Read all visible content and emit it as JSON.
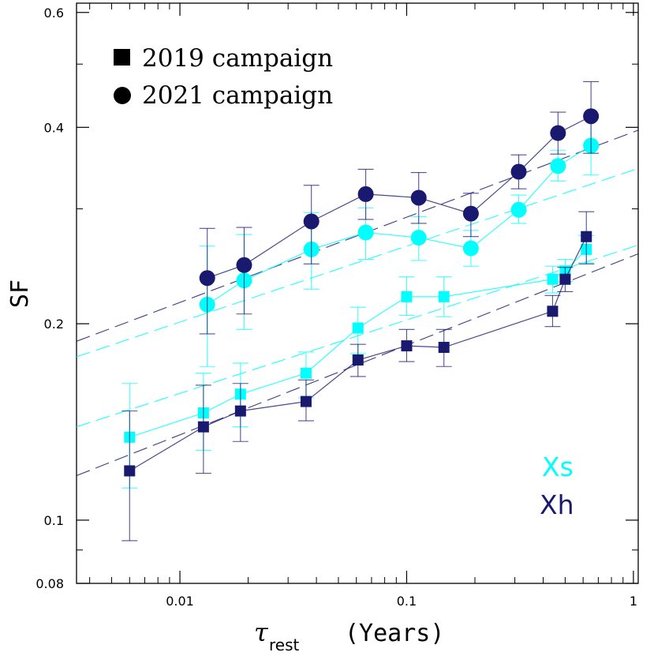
{
  "chart_data": {
    "type": "scatter",
    "title": "",
    "xlabel_symbol": "τ",
    "xlabel_sub": "rest",
    "xlabel_text": "(Years)",
    "ylabel": "SF",
    "xscale": "log",
    "yscale": "log",
    "xlim": [
      0.0035,
      1.05
    ],
    "ylim": [
      0.08,
      0.62
    ],
    "x_ticks": [
      {
        "value": 0.01,
        "label": "0.01"
      },
      {
        "value": 0.1,
        "label": "0.1"
      },
      {
        "value": 1,
        "label": "1"
      }
    ],
    "y_ticks": [
      {
        "value": 0.08,
        "label": "0.08"
      },
      {
        "value": 0.1,
        "label": "0.1"
      },
      {
        "value": 0.2,
        "label": "0.2"
      },
      {
        "value": 0.4,
        "label": "0.4"
      },
      {
        "value": 0.6,
        "label": "0.6"
      }
    ],
    "legend": [
      {
        "marker": "square",
        "label": "2019 campaign"
      },
      {
        "marker": "circle",
        "label": "2021 campaign"
      }
    ],
    "band_labels": [
      {
        "text": "Xs",
        "color": "#00ffff"
      },
      {
        "text": "Xh",
        "color": "#191970"
      }
    ],
    "series": [
      {
        "name": "2019 Xs",
        "marker": "square",
        "color": "#00ffff",
        "points": [
          {
            "x": 0.006,
            "y": 0.134,
            "lo": 0.112,
            "hi": 0.162
          },
          {
            "x": 0.0127,
            "y": 0.146,
            "lo": 0.128,
            "hi": 0.168
          },
          {
            "x": 0.0185,
            "y": 0.156,
            "lo": 0.139,
            "hi": 0.174
          },
          {
            "x": 0.036,
            "y": 0.168,
            "lo": 0.154,
            "hi": 0.181
          },
          {
            "x": 0.061,
            "y": 0.197,
            "lo": 0.18,
            "hi": 0.212
          },
          {
            "x": 0.1,
            "y": 0.22,
            "lo": 0.206,
            "hi": 0.236
          },
          {
            "x": 0.146,
            "y": 0.22,
            "lo": 0.205,
            "hi": 0.236
          },
          {
            "x": 0.44,
            "y": 0.234,
            "lo": 0.223,
            "hi": 0.245
          },
          {
            "x": 0.5,
            "y": 0.241,
            "lo": 0.232,
            "hi": 0.251
          },
          {
            "x": 0.62,
            "y": 0.26,
            "lo": 0.248,
            "hi": 0.273
          }
        ],
        "fit": {
          "y_at_0.0035": 0.139,
          "y_at_1.05": 0.264
        }
      },
      {
        "name": "2019 Xh",
        "marker": "square",
        "color": "#191970",
        "points": [
          {
            "x": 0.006,
            "y": 0.119,
            "lo": 0.093,
            "hi": 0.147
          },
          {
            "x": 0.0127,
            "y": 0.139,
            "lo": 0.118,
            "hi": 0.161
          },
          {
            "x": 0.0185,
            "y": 0.147,
            "lo": 0.132,
            "hi": 0.162
          },
          {
            "x": 0.036,
            "y": 0.152,
            "lo": 0.142,
            "hi": 0.164
          },
          {
            "x": 0.061,
            "y": 0.176,
            "lo": 0.166,
            "hi": 0.186
          },
          {
            "x": 0.1,
            "y": 0.185,
            "lo": 0.175,
            "hi": 0.196
          },
          {
            "x": 0.146,
            "y": 0.184,
            "lo": 0.172,
            "hi": 0.196
          },
          {
            "x": 0.44,
            "y": 0.209,
            "lo": 0.198,
            "hi": 0.221
          },
          {
            "x": 0.5,
            "y": 0.234,
            "lo": 0.224,
            "hi": 0.244
          },
          {
            "x": 0.62,
            "y": 0.272,
            "lo": 0.247,
            "hi": 0.297
          }
        ],
        "fit": {
          "y_at_0.0035": 0.117,
          "y_at_1.05": 0.256
        }
      },
      {
        "name": "2021 Xs",
        "marker": "circle",
        "color": "#00ffff",
        "points": [
          {
            "x": 0.0132,
            "y": 0.214,
            "lo": 0.172,
            "hi": 0.263
          },
          {
            "x": 0.0192,
            "y": 0.233,
            "lo": 0.196,
            "hi": 0.274
          },
          {
            "x": 0.038,
            "y": 0.26,
            "lo": 0.226,
            "hi": 0.296
          },
          {
            "x": 0.066,
            "y": 0.276,
            "lo": 0.251,
            "hi": 0.301
          },
          {
            "x": 0.113,
            "y": 0.271,
            "lo": 0.25,
            "hi": 0.292
          },
          {
            "x": 0.192,
            "y": 0.261,
            "lo": 0.245,
            "hi": 0.278
          },
          {
            "x": 0.312,
            "y": 0.299,
            "lo": 0.285,
            "hi": 0.315
          },
          {
            "x": 0.465,
            "y": 0.349,
            "lo": 0.331,
            "hi": 0.369
          },
          {
            "x": 0.65,
            "y": 0.375,
            "lo": 0.338,
            "hi": 0.413
          }
        ],
        "fit": {
          "y_at_0.0035": 0.178,
          "y_at_1.05": 0.346
        }
      },
      {
        "name": "2021 Xh",
        "marker": "circle",
        "color": "#191970",
        "points": [
          {
            "x": 0.0132,
            "y": 0.235,
            "lo": 0.193,
            "hi": 0.28
          },
          {
            "x": 0.0192,
            "y": 0.246,
            "lo": 0.207,
            "hi": 0.281
          },
          {
            "x": 0.038,
            "y": 0.287,
            "lo": 0.247,
            "hi": 0.326
          },
          {
            "x": 0.066,
            "y": 0.316,
            "lo": 0.289,
            "hi": 0.345
          },
          {
            "x": 0.113,
            "y": 0.312,
            "lo": 0.285,
            "hi": 0.341
          },
          {
            "x": 0.192,
            "y": 0.295,
            "lo": 0.272,
            "hi": 0.317
          },
          {
            "x": 0.312,
            "y": 0.342,
            "lo": 0.322,
            "hi": 0.363
          },
          {
            "x": 0.465,
            "y": 0.392,
            "lo": 0.364,
            "hi": 0.422
          },
          {
            "x": 0.65,
            "y": 0.416,
            "lo": 0.365,
            "hi": 0.47
          }
        ],
        "fit": {
          "y_at_0.0035": 0.188,
          "y_at_1.05": 0.396
        }
      }
    ]
  }
}
